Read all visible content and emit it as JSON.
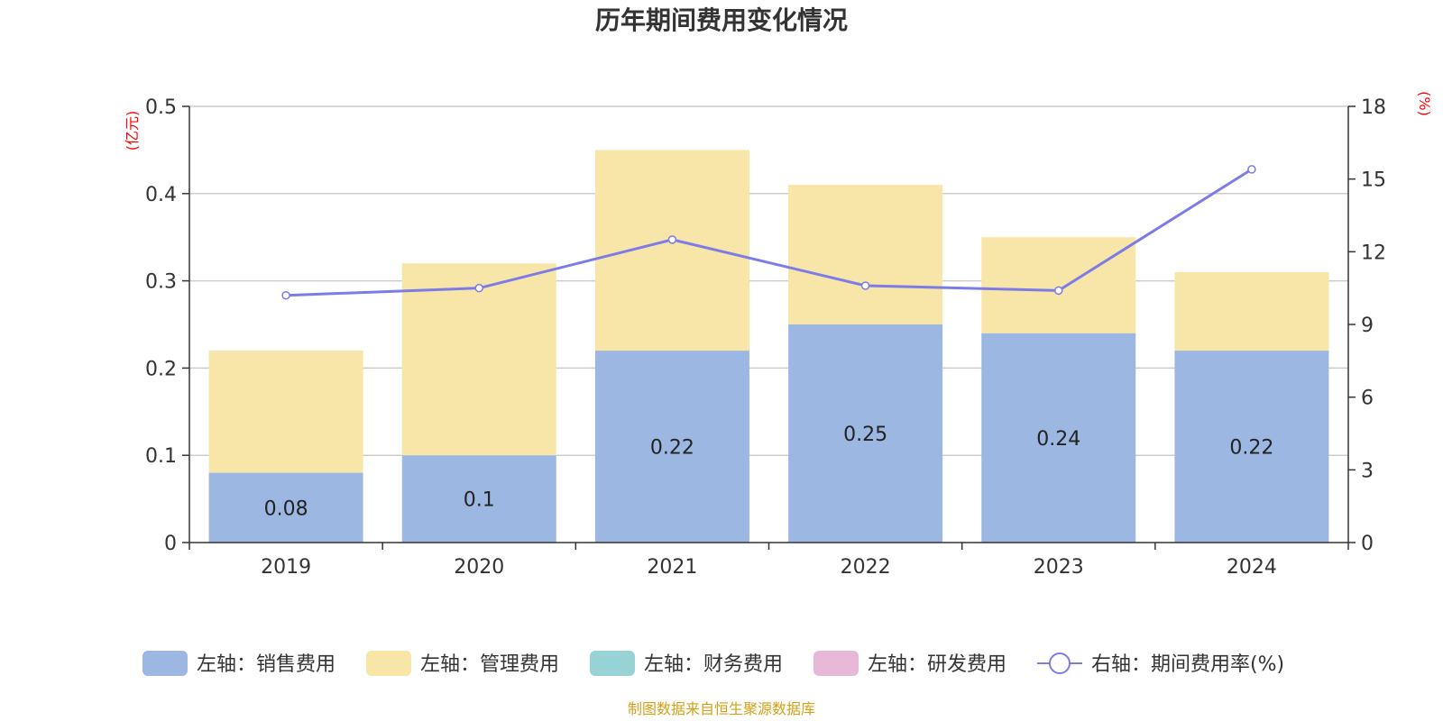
{
  "chart_data": {
    "type": "bar",
    "stacked": true,
    "title": "历年期间费用变化情况",
    "categories": [
      "2019",
      "2020",
      "2021",
      "2022",
      "2023",
      "2024"
    ],
    "left_axis": {
      "unit": "(亿元)",
      "ylim": [
        0,
        0.5
      ],
      "ticks": [
        "0",
        "0.1",
        "0.2",
        "0.3",
        "0.4",
        "0.5"
      ]
    },
    "right_axis": {
      "unit": "(%)",
      "ylim": [
        0,
        18
      ],
      "ticks": [
        "0",
        "3",
        "6",
        "9",
        "12",
        "15",
        "18"
      ]
    },
    "grid": true,
    "legend_position": "bottom",
    "series": [
      {
        "name": "左轴：销售费用",
        "kind": "bar",
        "axis": "left",
        "color": "#9cb8e2",
        "values": [
          0.08,
          0.1,
          0.22,
          0.25,
          0.24,
          0.22
        ],
        "labels": [
          "0.08",
          "0.1",
          "0.22",
          "0.25",
          "0.24",
          "0.22"
        ]
      },
      {
        "name": "左轴：管理费用",
        "kind": "bar",
        "axis": "left",
        "color": "#f7e6a7",
        "values": [
          0.14,
          0.22,
          0.23,
          0.16,
          0.11,
          0.09
        ]
      },
      {
        "name": "左轴：财务费用",
        "kind": "bar",
        "axis": "left",
        "color": "#97d3d4",
        "values": [
          0,
          0,
          0,
          0,
          0,
          0
        ]
      },
      {
        "name": "左轴：研发费用",
        "kind": "bar",
        "axis": "left",
        "color": "#e8b8d9",
        "values": [
          0,
          0,
          0,
          0,
          0,
          0
        ]
      },
      {
        "name": "右轴：期间费用率(%)",
        "kind": "line",
        "axis": "right",
        "color": "#7b7ce8",
        "values": [
          10.2,
          10.5,
          12.5,
          10.6,
          10.4,
          15.4
        ]
      }
    ]
  },
  "source_note": "制图数据来自恒生聚源数据库"
}
